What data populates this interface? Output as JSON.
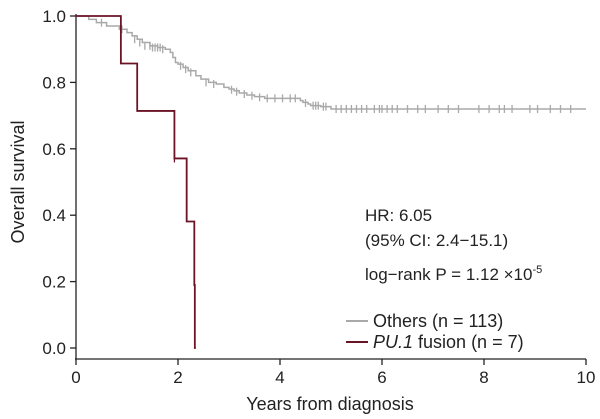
{
  "chart_data": {
    "type": "line",
    "subtype": "kaplan-meier",
    "xlabel": "Years from diagnosis",
    "ylabel": "Overall survival",
    "xlim": [
      0,
      10
    ],
    "ylim": [
      0,
      1.0
    ],
    "xticks": [
      0,
      2,
      4,
      6,
      8,
      10
    ],
    "yticks": [
      0.0,
      0.2,
      0.4,
      0.6,
      0.8,
      1.0
    ],
    "xtick_labels": [
      "0",
      "2",
      "4",
      "6",
      "8",
      "10"
    ],
    "ytick_labels": [
      "0.0",
      "0.2",
      "0.4",
      "0.6",
      "0.8",
      "1.0"
    ],
    "grid": false,
    "legend_position": "bottom-right",
    "series": [
      {
        "name_main": "Others",
        "name_suffix": " (n = 113)",
        "color": "#a9a9a9",
        "steps": [
          [
            0,
            1.0
          ],
          [
            0.25,
            0.99
          ],
          [
            0.4,
            0.98
          ],
          [
            0.6,
            0.97
          ],
          [
            0.85,
            0.96
          ],
          [
            1.0,
            0.95
          ],
          [
            1.1,
            0.94
          ],
          [
            1.2,
            0.93
          ],
          [
            1.3,
            0.92
          ],
          [
            1.45,
            0.91
          ],
          [
            1.6,
            0.905
          ],
          [
            1.75,
            0.9
          ],
          [
            1.85,
            0.89
          ],
          [
            1.9,
            0.875
          ],
          [
            1.95,
            0.86
          ],
          [
            2.0,
            0.855
          ],
          [
            2.1,
            0.845
          ],
          [
            2.2,
            0.835
          ],
          [
            2.35,
            0.82
          ],
          [
            2.45,
            0.81
          ],
          [
            2.6,
            0.8
          ],
          [
            2.75,
            0.795
          ],
          [
            2.9,
            0.785
          ],
          [
            3.0,
            0.78
          ],
          [
            3.1,
            0.775
          ],
          [
            3.2,
            0.768
          ],
          [
            3.35,
            0.762
          ],
          [
            3.5,
            0.757
          ],
          [
            3.7,
            0.752
          ],
          [
            4.4,
            0.745
          ],
          [
            4.45,
            0.74
          ],
          [
            4.55,
            0.735
          ],
          [
            4.6,
            0.73
          ],
          [
            4.8,
            0.727
          ],
          [
            5.0,
            0.72
          ],
          [
            10.0,
            0.72
          ]
        ],
        "censor": [
          [
            0.5,
            0.98
          ],
          [
            0.9,
            0.96
          ],
          [
            1.15,
            0.93
          ],
          [
            1.25,
            0.92
          ],
          [
            1.35,
            0.91
          ],
          [
            1.45,
            0.91
          ],
          [
            1.5,
            0.905
          ],
          [
            1.55,
            0.905
          ],
          [
            1.6,
            0.905
          ],
          [
            1.65,
            0.905
          ],
          [
            1.7,
            0.9
          ],
          [
            2.05,
            0.85
          ],
          [
            2.15,
            0.84
          ],
          [
            2.25,
            0.83
          ],
          [
            2.55,
            0.8
          ],
          [
            2.7,
            0.795
          ],
          [
            3.05,
            0.778
          ],
          [
            3.15,
            0.772
          ],
          [
            3.3,
            0.765
          ],
          [
            3.45,
            0.76
          ],
          [
            3.6,
            0.755
          ],
          [
            3.75,
            0.752
          ],
          [
            3.9,
            0.752
          ],
          [
            4.05,
            0.752
          ],
          [
            4.2,
            0.752
          ],
          [
            4.3,
            0.752
          ],
          [
            4.5,
            0.738
          ],
          [
            4.65,
            0.73
          ],
          [
            4.7,
            0.73
          ],
          [
            4.75,
            0.73
          ],
          [
            4.85,
            0.727
          ],
          [
            4.9,
            0.727
          ],
          [
            5.1,
            0.72
          ],
          [
            5.2,
            0.72
          ],
          [
            5.3,
            0.72
          ],
          [
            5.4,
            0.72
          ],
          [
            5.5,
            0.72
          ],
          [
            5.6,
            0.72
          ],
          [
            5.7,
            0.72
          ],
          [
            5.85,
            0.72
          ],
          [
            5.95,
            0.72
          ],
          [
            6.0,
            0.72
          ],
          [
            6.1,
            0.72
          ],
          [
            6.2,
            0.72
          ],
          [
            6.3,
            0.72
          ],
          [
            6.5,
            0.72
          ],
          [
            6.7,
            0.72
          ],
          [
            6.85,
            0.72
          ],
          [
            7.1,
            0.72
          ],
          [
            7.3,
            0.72
          ],
          [
            7.5,
            0.72
          ],
          [
            7.9,
            0.72
          ],
          [
            8.1,
            0.72
          ],
          [
            8.3,
            0.72
          ],
          [
            8.4,
            0.72
          ],
          [
            8.55,
            0.72
          ],
          [
            8.9,
            0.72
          ],
          [
            9.05,
            0.72
          ],
          [
            9.3,
            0.72
          ],
          [
            9.5,
            0.72
          ],
          [
            9.7,
            0.72
          ]
        ]
      },
      {
        "name_main": "PU.1",
        "name_suffix": " fusion (n = 7)",
        "name_main_italic": true,
        "color": "#6b1426",
        "steps": [
          [
            0,
            1.0
          ],
          [
            0.88,
            0.857
          ],
          [
            1.2,
            0.714
          ],
          [
            1.93,
            0.571
          ],
          [
            2.17,
            0.381
          ],
          [
            2.32,
            0.19
          ],
          [
            2.33,
            0.0
          ]
        ],
        "end_x": 2.35,
        "censor": [
          [
            1.93,
            0.571
          ]
        ]
      }
    ]
  },
  "annotations": {
    "hr_line": "HR: 6.05",
    "ci_line": "(95% CI: 2.4−15.1)",
    "logrank_prefix": "log−rank P = 1.12 ×10",
    "logrank_exp": "-5"
  }
}
